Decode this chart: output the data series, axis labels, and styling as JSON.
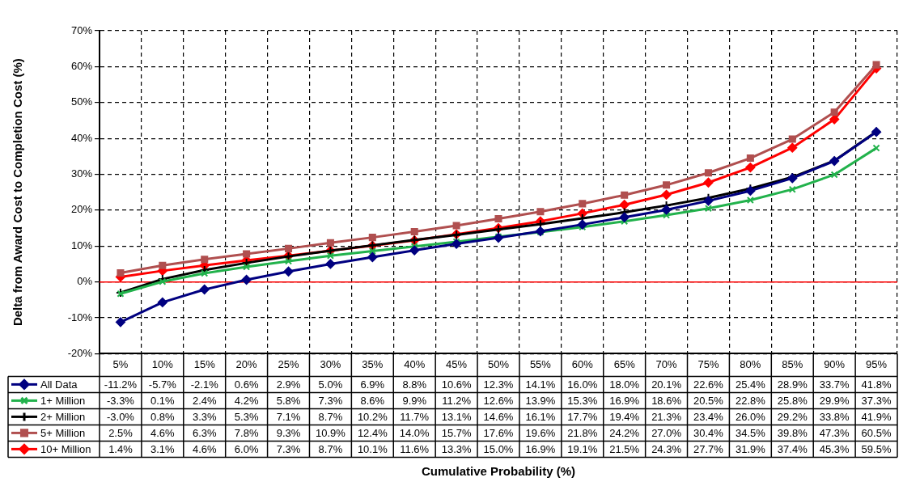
{
  "chart_data": {
    "type": "line",
    "annotations": [
      "Cumulative Probability (%)"
    ],
    "ylabel": "Delta from Award Cost to Completion Cost (%)",
    "categories": [
      "5%",
      "10%",
      "15%",
      "20%",
      "25%",
      "30%",
      "35%",
      "40%",
      "45%",
      "50%",
      "55%",
      "60%",
      "65%",
      "70%",
      "75%",
      "80%",
      "85%",
      "90%",
      "95%"
    ],
    "ylim": [
      -20,
      70
    ],
    "yticks": [
      {
        "value": -20,
        "label": "-20%"
      },
      {
        "value": -10,
        "label": "-10%"
      },
      {
        "value": 0,
        "label": "0%"
      },
      {
        "value": 10,
        "label": "10%"
      },
      {
        "value": 20,
        "label": "20%"
      },
      {
        "value": 30,
        "label": "30%"
      },
      {
        "value": 40,
        "label": "40%"
      },
      {
        "value": 50,
        "label": "50%"
      },
      {
        "value": 60,
        "label": "60%"
      },
      {
        "value": 70,
        "label": "70%"
      }
    ],
    "grid": true,
    "legend": "bottom left",
    "line_style": "solid",
    "data_labels": true,
    "ref_lines": [
      {
        "axis": "y",
        "value": 0,
        "color": "#ff0000"
      }
    ],
    "series": [
      {
        "name": "All Data",
        "color": "#000080",
        "marker": "diamond",
        "values": [
          -11.2,
          -5.7,
          -2.1,
          0.6,
          2.9,
          5.0,
          6.9,
          8.8,
          10.6,
          12.3,
          14.1,
          16.0,
          18.0,
          20.1,
          22.6,
          25.4,
          28.9,
          33.7,
          41.8
        ],
        "value_labels": [
          "-11.2%",
          "-5.7%",
          "-2.1%",
          "0.6%",
          "2.9%",
          "5.0%",
          "6.9%",
          "8.8%",
          "10.6%",
          "12.3%",
          "14.1%",
          "16.0%",
          "18.0%",
          "20.1%",
          "22.6%",
          "25.4%",
          "28.9%",
          "33.7%",
          "41.8%"
        ]
      },
      {
        "name": "1+ Million",
        "color": "#22b24c",
        "marker": "cross",
        "values": [
          -3.3,
          0.1,
          2.4,
          4.2,
          5.8,
          7.3,
          8.6,
          9.9,
          11.2,
          12.6,
          13.9,
          15.3,
          16.9,
          18.6,
          20.5,
          22.8,
          25.8,
          29.9,
          37.3
        ],
        "value_labels": [
          "-3.3%",
          "0.1%",
          "2.4%",
          "4.2%",
          "5.8%",
          "7.3%",
          "8.6%",
          "9.9%",
          "11.2%",
          "12.6%",
          "13.9%",
          "15.3%",
          "16.9%",
          "18.6%",
          "20.5%",
          "22.8%",
          "25.8%",
          "29.9%",
          "37.3%"
        ]
      },
      {
        "name": "2+ Million",
        "color": "#000000",
        "marker": "plus",
        "values": [
          -3.0,
          0.8,
          3.3,
          5.3,
          7.1,
          8.7,
          10.2,
          11.7,
          13.1,
          14.6,
          16.1,
          17.7,
          19.4,
          21.3,
          23.4,
          26.0,
          29.2,
          33.8,
          41.9
        ],
        "value_labels": [
          "-3.0%",
          "0.8%",
          "3.3%",
          "5.3%",
          "7.1%",
          "8.7%",
          "10.2%",
          "11.7%",
          "13.1%",
          "14.6%",
          "16.1%",
          "17.7%",
          "19.4%",
          "21.3%",
          "23.4%",
          "26.0%",
          "29.2%",
          "33.8%",
          "41.9%"
        ]
      },
      {
        "name": "5+ Million",
        "color": "#b04f4f",
        "marker": "square",
        "values": [
          2.5,
          4.6,
          6.3,
          7.8,
          9.3,
          10.9,
          12.4,
          14.0,
          15.7,
          17.6,
          19.6,
          21.8,
          24.2,
          27.0,
          30.4,
          34.5,
          39.8,
          47.3,
          60.5
        ],
        "value_labels": [
          "2.5%",
          "4.6%",
          "6.3%",
          "7.8%",
          "9.3%",
          "10.9%",
          "12.4%",
          "14.0%",
          "15.7%",
          "17.6%",
          "19.6%",
          "21.8%",
          "24.2%",
          "27.0%",
          "30.4%",
          "34.5%",
          "39.8%",
          "47.3%",
          "60.5%"
        ]
      },
      {
        "name": "10+ Million",
        "color": "#ff0000",
        "marker": "diamond",
        "values": [
          1.4,
          3.1,
          4.6,
          6.0,
          7.3,
          8.7,
          10.1,
          11.6,
          13.3,
          15.0,
          16.9,
          19.1,
          21.5,
          24.3,
          27.7,
          31.9,
          37.4,
          45.3,
          59.5
        ],
        "value_labels": [
          "1.4%",
          "3.1%",
          "4.6%",
          "6.0%",
          "7.3%",
          "8.7%",
          "10.1%",
          "11.6%",
          "13.3%",
          "15.0%",
          "16.9%",
          "19.1%",
          "21.5%",
          "24.3%",
          "27.7%",
          "31.9%",
          "37.4%",
          "45.3%",
          "59.5%"
        ]
      }
    ]
  }
}
